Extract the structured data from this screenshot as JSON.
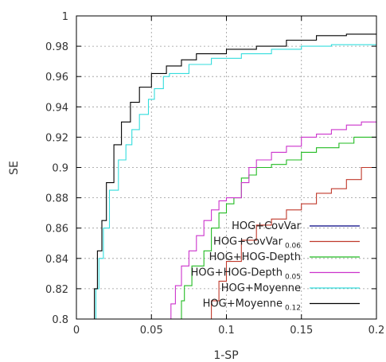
{
  "chart_data": {
    "type": "line",
    "xlabel": "1-SP",
    "ylabel": "SE",
    "xlim": [
      0,
      0.2
    ],
    "ylim": [
      0.8,
      1.0
    ],
    "x_ticks": [
      0,
      0.05,
      0.1,
      0.15,
      0.2
    ],
    "x_tick_labels": [
      "0",
      "0.05",
      "0.1",
      "0.15",
      "0.2"
    ],
    "y_ticks": [
      0.8,
      0.82,
      0.84,
      0.86,
      0.88,
      0.9,
      0.92,
      0.94,
      0.96,
      0.98,
      1.0
    ],
    "y_tick_labels": [
      "0.8",
      "0.82",
      "0.84",
      "0.86",
      "0.88",
      "0.9",
      "0.92",
      "0.94",
      "0.96",
      "0.98",
      "1"
    ],
    "grid": true,
    "legend_position": "bottom-right",
    "series": [
      {
        "name": "HOG+CovVar",
        "subscript": "",
        "color": "#000080",
        "points": []
      },
      {
        "name": "HOG+CovVar",
        "subscript": "0.06",
        "color": "#c0392b",
        "points": [
          [
            0.09,
            0.8
          ],
          [
            0.095,
            0.812
          ],
          [
            0.1,
            0.825
          ],
          [
            0.11,
            0.838
          ],
          [
            0.12,
            0.852
          ],
          [
            0.13,
            0.862
          ],
          [
            0.14,
            0.866
          ],
          [
            0.15,
            0.872
          ],
          [
            0.16,
            0.876
          ],
          [
            0.17,
            0.883
          ],
          [
            0.18,
            0.886
          ],
          [
            0.19,
            0.892
          ],
          [
            0.2,
            0.9
          ]
        ]
      },
      {
        "name": "HOG+HOG-Depth",
        "subscript": "",
        "color": "#22bb22",
        "points": [
          [
            0.07,
            0.8
          ],
          [
            0.072,
            0.812
          ],
          [
            0.077,
            0.822
          ],
          [
            0.085,
            0.835
          ],
          [
            0.09,
            0.845
          ],
          [
            0.095,
            0.86
          ],
          [
            0.1,
            0.87
          ],
          [
            0.105,
            0.876
          ],
          [
            0.11,
            0.88
          ],
          [
            0.115,
            0.893
          ],
          [
            0.12,
            0.895
          ],
          [
            0.13,
            0.9
          ],
          [
            0.14,
            0.902
          ],
          [
            0.15,
            0.905
          ],
          [
            0.16,
            0.91
          ],
          [
            0.175,
            0.913
          ],
          [
            0.185,
            0.916
          ],
          [
            0.2,
            0.92
          ]
        ]
      },
      {
        "name": "HOG+HOG-Depth",
        "subscript": "0.05",
        "color": "#cc33cc",
        "points": [
          [
            0.063,
            0.8
          ],
          [
            0.066,
            0.81
          ],
          [
            0.07,
            0.822
          ],
          [
            0.075,
            0.835
          ],
          [
            0.08,
            0.845
          ],
          [
            0.085,
            0.855
          ],
          [
            0.09,
            0.865
          ],
          [
            0.095,
            0.872
          ],
          [
            0.1,
            0.878
          ],
          [
            0.11,
            0.88
          ],
          [
            0.115,
            0.89
          ],
          [
            0.12,
            0.9
          ],
          [
            0.13,
            0.905
          ],
          [
            0.14,
            0.91
          ],
          [
            0.15,
            0.914
          ],
          [
            0.16,
            0.92
          ],
          [
            0.17,
            0.922
          ],
          [
            0.18,
            0.925
          ],
          [
            0.19,
            0.928
          ],
          [
            0.2,
            0.93
          ]
        ]
      },
      {
        "name": "HOG+Moyenne",
        "subscript": "",
        "color": "#33dddd",
        "points": [
          [
            0.013,
            0.8
          ],
          [
            0.015,
            0.82
          ],
          [
            0.018,
            0.84
          ],
          [
            0.022,
            0.86
          ],
          [
            0.028,
            0.885
          ],
          [
            0.033,
            0.905
          ],
          [
            0.037,
            0.915
          ],
          [
            0.042,
            0.925
          ],
          [
            0.048,
            0.935
          ],
          [
            0.052,
            0.945
          ],
          [
            0.058,
            0.952
          ],
          [
            0.062,
            0.96
          ],
          [
            0.075,
            0.962
          ],
          [
            0.09,
            0.968
          ],
          [
            0.11,
            0.972
          ],
          [
            0.13,
            0.975
          ],
          [
            0.15,
            0.978
          ],
          [
            0.17,
            0.98
          ],
          [
            0.2,
            0.981
          ]
        ]
      },
      {
        "name": "HOG+Moyenne",
        "subscript": "0.12",
        "color": "#000000",
        "points": [
          [
            0.012,
            0.8
          ],
          [
            0.014,
            0.82
          ],
          [
            0.017,
            0.845
          ],
          [
            0.02,
            0.865
          ],
          [
            0.025,
            0.89
          ],
          [
            0.03,
            0.915
          ],
          [
            0.036,
            0.93
          ],
          [
            0.042,
            0.943
          ],
          [
            0.05,
            0.953
          ],
          [
            0.06,
            0.962
          ],
          [
            0.07,
            0.967
          ],
          [
            0.08,
            0.971
          ],
          [
            0.1,
            0.975
          ],
          [
            0.12,
            0.978
          ],
          [
            0.14,
            0.98
          ],
          [
            0.16,
            0.984
          ],
          [
            0.18,
            0.987
          ],
          [
            0.2,
            0.988
          ]
        ]
      }
    ]
  }
}
